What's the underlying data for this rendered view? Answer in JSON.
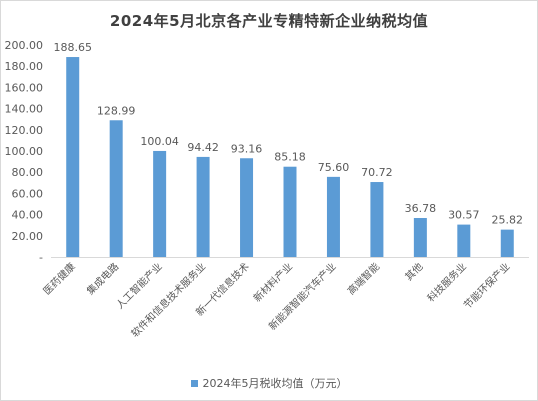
{
  "chart_data": {
    "type": "bar",
    "title": "2024年5月北京各产业专精特新企业纳税均值",
    "xlabel": "",
    "ylabel": "",
    "ylim": [
      0,
      200
    ],
    "yticks": [
      "-",
      "20.00",
      "40.00",
      "60.00",
      "80.00",
      "100.00",
      "120.00",
      "140.00",
      "160.00",
      "180.00",
      "200.00"
    ],
    "categories": [
      "医药健康",
      "集成电路",
      "人工智能产业",
      "软件和信息技术服务业",
      "新一代信息技术",
      "新材料产业",
      "新能源智能汽车产业",
      "高端智能",
      "其他",
      "科技服务业",
      "节能环保产业"
    ],
    "series": [
      {
        "name": "2024年5月税收均值（万元）",
        "values": [
          188.65,
          128.99,
          100.04,
          94.42,
          93.16,
          85.18,
          75.6,
          70.72,
          36.78,
          30.57,
          25.82
        ],
        "labels": [
          "188.65",
          "128.99",
          "100.04",
          "94.42",
          "93.16",
          "85.18",
          "75.60",
          "70.72",
          "36.78",
          "30.57",
          "25.82"
        ]
      }
    ],
    "grid": false,
    "legend": "bottom",
    "colors": {
      "bar": "#5b9bd5",
      "axis": "#d9d9d9",
      "text": "#595959",
      "title": "#404040"
    }
  }
}
